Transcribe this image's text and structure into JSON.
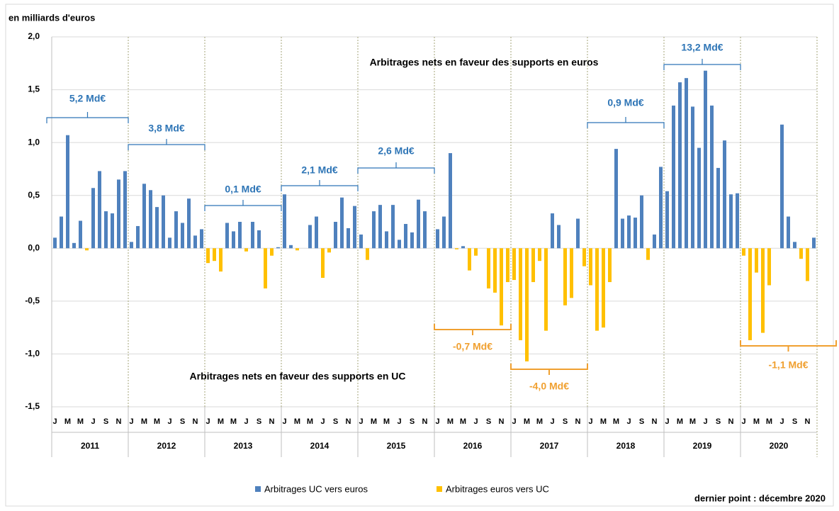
{
  "chart_data": {
    "type": "bar",
    "y_label": "en milliards d'euros",
    "note": "dernier point : décembre 2020",
    "ylim": [
      -1.5,
      2.0
    ],
    "yticks": [
      {
        "value": 2.0,
        "label": "2,0"
      },
      {
        "value": 1.5,
        "label": "1,5"
      },
      {
        "value": 1.0,
        "label": "1,0"
      },
      {
        "value": 0.5,
        "label": "0,5"
      },
      {
        "value": 0.0,
        "label": "0,0"
      },
      {
        "value": -0.5,
        "label": "-0,5"
      },
      {
        "value": -1.0,
        "label": "-1,0"
      },
      {
        "value": -1.5,
        "label": "-1,5"
      }
    ],
    "grid": true,
    "years": [
      "2011",
      "2012",
      "2013",
      "2014",
      "2015",
      "2016",
      "2017",
      "2018",
      "2019",
      "2020"
    ],
    "categories": [
      "J",
      null,
      "M",
      null,
      "M",
      null,
      "J",
      null,
      "S",
      null,
      "N",
      null,
      "J",
      null,
      "M",
      null,
      "M",
      null,
      "J",
      null,
      "S",
      null,
      "N",
      null,
      "J",
      null,
      "M",
      null,
      "M",
      null,
      "J",
      null,
      "S",
      null,
      "N",
      null,
      "J",
      null,
      "M",
      null,
      "M",
      null,
      "J",
      null,
      "S",
      null,
      "N",
      null,
      "J",
      null,
      "M",
      null,
      "M",
      null,
      "J",
      null,
      "S",
      null,
      "N",
      null,
      "J",
      null,
      "M",
      null,
      "M",
      null,
      "J",
      null,
      "S",
      null,
      "N",
      null,
      "J",
      null,
      "M",
      null,
      "M",
      null,
      "J",
      null,
      "S",
      null,
      "N",
      null,
      "J",
      null,
      "M",
      null,
      "M",
      null,
      "J",
      null,
      "S",
      null,
      "N",
      null,
      "J",
      null,
      "M",
      null,
      "M",
      null,
      "J",
      null,
      "S",
      null,
      "N",
      null,
      "J",
      null,
      "M",
      null,
      "M",
      null,
      "J",
      null,
      "S",
      null,
      "N",
      null
    ],
    "series": [
      {
        "name": "Arbitrages UC vers euros",
        "color": "#4f81bd",
        "values": [
          0.1,
          0.3,
          1.07,
          0.05,
          0.26,
          null,
          0.57,
          0.73,
          0.35,
          0.33,
          0.65,
          0.73,
          0.06,
          0.21,
          0.61,
          0.55,
          0.39,
          0.5,
          0.1,
          0.35,
          0.24,
          0.47,
          0.12,
          0.18,
          null,
          null,
          null,
          0.24,
          0.16,
          0.25,
          null,
          0.25,
          0.17,
          null,
          null,
          0.01,
          0.51,
          0.03,
          null,
          null,
          0.22,
          0.3,
          null,
          null,
          0.25,
          0.48,
          0.19,
          0.4,
          0.13,
          null,
          0.35,
          0.41,
          0.16,
          0.41,
          0.08,
          0.23,
          0.15,
          0.46,
          0.35,
          null,
          0.18,
          0.3,
          0.9,
          null,
          0.02,
          null,
          null,
          null,
          null,
          null,
          null,
          null,
          null,
          null,
          null,
          null,
          null,
          null,
          0.33,
          0.22,
          null,
          null,
          0.28,
          null,
          null,
          null,
          null,
          null,
          0.94,
          0.28,
          0.31,
          0.29,
          0.5,
          null,
          0.13,
          0.77,
          0.54,
          1.35,
          1.57,
          1.61,
          1.34,
          0.95,
          1.68,
          1.35,
          0.76,
          1.02,
          0.51,
          0.52,
          null,
          null,
          null,
          null,
          null,
          null,
          1.17,
          0.3,
          0.06,
          null,
          null,
          0.1
        ]
      },
      {
        "name": "Arbitrages euros vers UC",
        "color": "#ffc000",
        "values": [
          null,
          null,
          null,
          null,
          null,
          -0.02,
          null,
          null,
          null,
          null,
          null,
          null,
          null,
          null,
          null,
          null,
          null,
          null,
          null,
          null,
          null,
          null,
          null,
          null,
          -0.14,
          -0.12,
          -0.22,
          null,
          null,
          null,
          -0.03,
          null,
          null,
          -0.38,
          -0.07,
          null,
          null,
          null,
          -0.02,
          null,
          null,
          null,
          -0.28,
          -0.04,
          null,
          null,
          null,
          null,
          null,
          -0.11,
          null,
          null,
          null,
          null,
          null,
          null,
          null,
          null,
          null,
          null,
          null,
          null,
          null,
          -0.01,
          null,
          -0.21,
          -0.07,
          null,
          -0.38,
          -0.42,
          -0.73,
          -0.32,
          -0.3,
          -0.87,
          -1.07,
          -0.32,
          -0.12,
          -0.78,
          null,
          null,
          -0.54,
          -0.47,
          null,
          -0.17,
          -0.35,
          -0.78,
          -0.75,
          -0.32,
          null,
          null,
          null,
          null,
          null,
          -0.11,
          null,
          null,
          null,
          null,
          null,
          null,
          null,
          null,
          null,
          null,
          null,
          null,
          null,
          null,
          -0.07,
          -0.87,
          -0.23,
          -0.8,
          -0.35,
          null,
          null,
          null,
          null,
          -0.1,
          -0.31,
          null
        ]
      }
    ],
    "annotations": [
      {
        "text": "Arbitrages nets en faveur des supports en euros"
      },
      {
        "text": "Arbitrages nets en faveur des supports en UC"
      },
      {
        "text": "5,2 Md€"
      },
      {
        "text": "3,8 Md€"
      },
      {
        "text": "0,1 Md€"
      },
      {
        "text": "2,1 Md€"
      },
      {
        "text": "2,6 Md€"
      },
      {
        "text": "0,9 Md€"
      },
      {
        "text": "13,2 Md€"
      },
      {
        "text": "-0,7 Md€"
      },
      {
        "text": "-4,0 Md€"
      },
      {
        "text": "-1,1 Md€"
      }
    ]
  }
}
